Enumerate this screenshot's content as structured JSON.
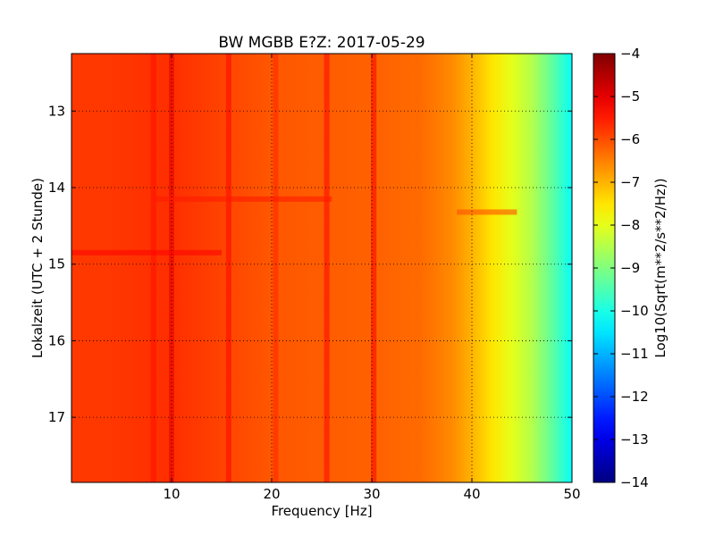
{
  "chart_data": {
    "type": "heatmap",
    "title": "BW MGBB E?Z: 2017-05-29",
    "xlabel": "Frequency [Hz]",
    "ylabel": "Lokalzeit (UTC + 2 Stunde)",
    "colorbar_label": "Log10(Sqrt(m**2/s**2/Hz))",
    "xlim": [
      0,
      50
    ],
    "ylim": [
      12.25,
      17.85
    ],
    "y_inverted": true,
    "clim": [
      -14,
      -4
    ],
    "colormap": "jet",
    "grid": "dotted",
    "x_ticks": [
      10,
      20,
      30,
      40,
      50
    ],
    "x_tick_labels": [
      "10",
      "20",
      "30",
      "40",
      "50"
    ],
    "y_ticks": [
      13,
      14,
      15,
      16,
      17
    ],
    "y_tick_labels": [
      "13",
      "14",
      "15",
      "16",
      "17"
    ],
    "colorbar_ticks": [
      -4,
      -5,
      -6,
      -7,
      -8,
      -9,
      -10,
      -11,
      -12,
      -13,
      -14
    ],
    "colorbar_tick_labels": [
      "−4",
      "−5",
      "−6",
      "−7",
      "−8",
      "−9",
      "−10",
      "−11",
      "−12",
      "−13",
      "−14"
    ],
    "level_vs_frequency": [
      {
        "f": 0,
        "level": -5.8
      },
      {
        "f": 3,
        "level": -5.8
      },
      {
        "f": 10,
        "level": -5.7
      },
      {
        "f": 20,
        "level": -6.1
      },
      {
        "f": 30,
        "level": -6.2
      },
      {
        "f": 35,
        "level": -6.3
      },
      {
        "f": 38,
        "level": -6.6
      },
      {
        "f": 40,
        "level": -7.0
      },
      {
        "f": 42,
        "level": -7.5
      },
      {
        "f": 44,
        "level": -8.0
      },
      {
        "f": 46,
        "level": -8.5
      },
      {
        "f": 48,
        "level": -9.3
      },
      {
        "f": 50,
        "level": -10.2
      }
    ],
    "vertical_features_hz": [
      {
        "f": 8.2,
        "level": -5.4
      },
      {
        "f": 10.0,
        "level": -5.0
      },
      {
        "f": 15.7,
        "level": -5.3
      },
      {
        "f": 20.4,
        "level": -5.6
      },
      {
        "f": 25.5,
        "level": -5.3
      },
      {
        "f": 30.2,
        "level": -5.2
      }
    ],
    "notable_events": [
      {
        "time": 14.32,
        "f_from": 38.5,
        "f_to": 44.5,
        "level": -6.0
      },
      {
        "time": 14.85,
        "f_from": 0,
        "f_to": 15,
        "level": -5.3
      },
      {
        "time": 14.15,
        "f_from": 8,
        "f_to": 26,
        "level": -5.5
      }
    ]
  }
}
